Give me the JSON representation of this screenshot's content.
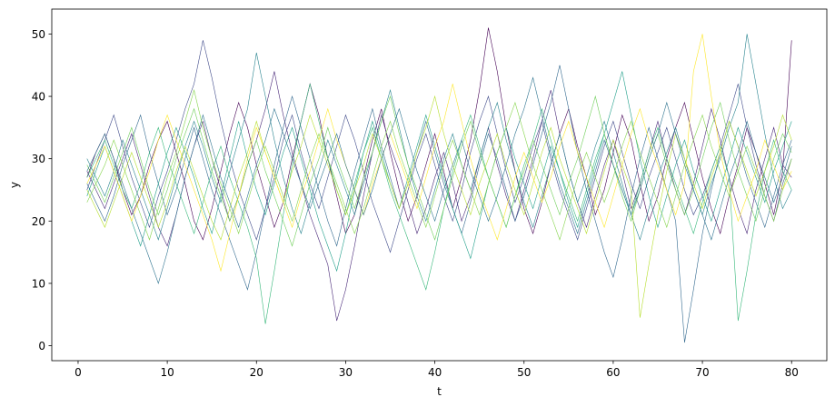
{
  "chart_data": {
    "type": "line",
    "x_label": "t",
    "y_label": "y",
    "x": [
      1,
      2,
      3,
      4,
      5,
      6,
      7,
      8,
      9,
      10,
      11,
      12,
      13,
      14,
      15,
      16,
      17,
      18,
      19,
      20,
      21,
      22,
      23,
      24,
      25,
      26,
      27,
      28,
      29,
      30,
      31,
      32,
      33,
      34,
      35,
      36,
      37,
      38,
      39,
      40,
      41,
      42,
      43,
      44,
      45,
      46,
      47,
      48,
      49,
      50,
      51,
      52,
      53,
      54,
      55,
      56,
      57,
      58,
      59,
      60,
      61,
      62,
      63,
      64,
      65,
      66,
      67,
      68,
      69,
      70,
      71,
      72,
      73,
      74,
      75,
      76,
      77,
      78,
      79,
      80
    ],
    "xlim": [
      -2.95,
      83.95
    ],
    "xticks": [
      0,
      10,
      20,
      30,
      40,
      50,
      60,
      70,
      80
    ],
    "ylim": [
      -2.4,
      54
    ],
    "yticks": [
      0,
      10,
      20,
      30,
      40,
      50
    ],
    "series": [
      {
        "color": "#440154",
        "values": [
          27,
          31,
          34,
          30,
          25,
          21,
          24,
          29,
          33,
          36,
          31,
          26,
          20,
          17,
          22,
          28,
          34,
          39,
          35,
          29,
          24,
          19,
          23,
          30,
          36,
          42,
          37,
          30,
          24,
          18,
          21,
          27,
          33,
          38,
          31,
          25,
          20,
          24,
          29,
          34,
          28,
          22,
          27,
          33,
          41,
          51,
          44,
          35,
          28,
          22,
          18,
          23,
          29,
          34,
          38,
          32,
          27,
          21,
          25,
          31,
          37,
          33,
          26,
          20,
          24,
          30,
          35,
          39,
          33,
          27,
          22,
          18,
          24,
          29,
          35,
          31,
          26,
          21,
          28,
          49
        ]
      },
      {
        "color": "#482878",
        "values": [
          28,
          25,
          22,
          26,
          30,
          34,
          29,
          24,
          19,
          16,
          21,
          27,
          32,
          36,
          30,
          25,
          20,
          24,
          29,
          33,
          38,
          44,
          37,
          31,
          26,
          21,
          17,
          13,
          4,
          9,
          16,
          24,
          31,
          37,
          32,
          28,
          23,
          18,
          22,
          27,
          31,
          26,
          20,
          24,
          30,
          35,
          29,
          24,
          20,
          25,
          30,
          36,
          41,
          34,
          28,
          23,
          19,
          24,
          29,
          33,
          28,
          22,
          26,
          31,
          36,
          30,
          25,
          21,
          26,
          32,
          38,
          33,
          27,
          22,
          18,
          25,
          30,
          35,
          29,
          27
        ]
      },
      {
        "color": "#3e4989",
        "values": [
          25,
          29,
          33,
          37,
          32,
          27,
          23,
          19,
          24,
          28,
          33,
          38,
          42,
          49,
          43,
          36,
          30,
          25,
          21,
          17,
          22,
          27,
          33,
          37,
          31,
          26,
          22,
          27,
          32,
          37,
          33,
          28,
          23,
          19,
          15,
          20,
          25,
          30,
          34,
          29,
          24,
          20,
          25,
          31,
          36,
          40,
          34,
          28,
          23,
          27,
          32,
          36,
          30,
          25,
          21,
          17,
          22,
          27,
          32,
          36,
          31,
          26,
          22,
          27,
          31,
          35,
          30,
          25,
          21,
          24,
          28,
          32,
          37,
          42,
          35,
          29,
          24,
          20,
          26,
          30
        ]
      },
      {
        "color": "#31688e",
        "values": [
          26,
          23,
          20,
          24,
          29,
          33,
          37,
          31,
          26,
          21,
          25,
          30,
          35,
          30,
          25,
          21,
          17,
          13,
          9,
          15,
          22,
          29,
          35,
          40,
          35,
          30,
          25,
          20,
          16,
          22,
          28,
          33,
          38,
          32,
          27,
          22,
          26,
          31,
          36,
          31,
          26,
          22,
          18,
          23,
          29,
          34,
          30,
          25,
          20,
          24,
          29,
          34,
          39,
          45,
          38,
          31,
          25,
          20,
          15,
          11,
          17,
          24,
          30,
          35,
          30,
          25,
          20,
          0.5,
          9,
          18,
          25,
          31,
          36,
          32,
          27,
          23,
          19,
          24,
          29,
          33
        ]
      },
      {
        "color": "#26828e",
        "values": [
          30,
          27,
          24,
          28,
          33,
          29,
          25,
          21,
          17,
          22,
          27,
          32,
          36,
          32,
          27,
          23,
          28,
          33,
          38,
          47,
          40,
          33,
          27,
          22,
          18,
          23,
          28,
          33,
          29,
          25,
          21,
          26,
          31,
          36,
          41,
          35,
          29,
          24,
          20,
          25,
          30,
          34,
          29,
          25,
          30,
          35,
          39,
          33,
          28,
          23,
          19,
          24,
          29,
          34,
          28,
          23,
          27,
          32,
          36,
          31,
          26,
          21,
          17,
          22,
          27,
          31,
          35,
          30,
          25,
          21,
          26,
          30,
          35,
          39,
          50,
          42,
          34,
          27,
          22,
          25
        ]
      },
      {
        "color": "#1f9e89",
        "values": [
          24,
          28,
          32,
          28,
          24,
          20,
          16,
          21,
          26,
          31,
          35,
          31,
          27,
          22,
          18,
          24,
          30,
          36,
          30,
          25,
          21,
          26,
          31,
          35,
          30,
          25,
          20,
          16,
          12,
          18,
          25,
          31,
          36,
          31,
          26,
          22,
          27,
          32,
          37,
          32,
          27,
          22,
          18,
          14,
          20,
          26,
          31,
          35,
          30,
          26,
          22,
          27,
          32,
          28,
          23,
          19,
          24,
          29,
          34,
          39,
          44,
          37,
          30,
          24,
          19,
          24,
          29,
          33,
          28,
          24,
          20,
          25,
          30,
          35,
          31,
          27,
          23,
          28,
          32,
          36
        ]
      },
      {
        "color": "#35b779",
        "values": [
          27,
          30,
          33,
          29,
          25,
          22,
          26,
          31,
          35,
          30,
          26,
          22,
          18,
          23,
          28,
          32,
          27,
          23,
          19,
          14,
          3.5,
          12,
          21,
          29,
          36,
          42,
          36,
          30,
          25,
          21,
          26,
          31,
          35,
          30,
          25,
          21,
          17,
          13,
          9,
          15,
          22,
          28,
          33,
          37,
          32,
          27,
          23,
          19,
          24,
          29,
          33,
          38,
          33,
          28,
          24,
          20,
          25,
          30,
          34,
          29,
          25,
          21,
          26,
          31,
          35,
          30,
          26,
          22,
          18,
          23,
          28,
          32,
          27,
          4,
          12,
          21,
          28,
          33,
          28,
          25
        ]
      },
      {
        "color": "#6ece58",
        "values": [
          29,
          26,
          23,
          27,
          31,
          35,
          30,
          25,
          21,
          25,
          30,
          34,
          38,
          33,
          28,
          24,
          20,
          24,
          29,
          33,
          28,
          24,
          20,
          16,
          21,
          26,
          30,
          35,
          30,
          26,
          22,
          27,
          31,
          36,
          40,
          34,
          29,
          25,
          21,
          17,
          22,
          27,
          32,
          36,
          31,
          27,
          23,
          19,
          24,
          28,
          33,
          29,
          25,
          21,
          26,
          30,
          35,
          40,
          34,
          29,
          24,
          20,
          25,
          30,
          34,
          29,
          25,
          21,
          25,
          30,
          35,
          39,
          33,
          28,
          24,
          20,
          25,
          30,
          34,
          31
        ]
      },
      {
        "color": "#b5de2b",
        "values": [
          25,
          22,
          19,
          23,
          27,
          31,
          27,
          23,
          19,
          23,
          28,
          32,
          28,
          24,
          20,
          17,
          22,
          27,
          31,
          36,
          31,
          27,
          23,
          28,
          32,
          37,
          33,
          29,
          25,
          21,
          25,
          29,
          34,
          30,
          26,
          22,
          26,
          31,
          35,
          40,
          34,
          29,
          25,
          21,
          26,
          30,
          34,
          29,
          25,
          21,
          26,
          31,
          35,
          30,
          26,
          22,
          18,
          23,
          28,
          33,
          29,
          25,
          4.5,
          13,
          21,
          28,
          34,
          30,
          26,
          22,
          27,
          31,
          36,
          32,
          28,
          24,
          28,
          32,
          37,
          33
        ]
      },
      {
        "color": "#fde725",
        "values": [
          26,
          29,
          32,
          28,
          24,
          20,
          24,
          28,
          33,
          37,
          33,
          29,
          25,
          21,
          17,
          12,
          18,
          24,
          30,
          35,
          31,
          27,
          23,
          19,
          24,
          28,
          33,
          38,
          33,
          29,
          25,
          21,
          26,
          30,
          34,
          30,
          26,
          22,
          27,
          32,
          36,
          42,
          36,
          30,
          25,
          21,
          17,
          22,
          27,
          31,
          27,
          23,
          27,
          32,
          36,
          31,
          27,
          23,
          19,
          24,
          29,
          34,
          38,
          33,
          29,
          25,
          21,
          26,
          44,
          50,
          40,
          31,
          25,
          20,
          24,
          28,
          33,
          29,
          25,
          28
        ]
      },
      {
        "color": "#2c728e",
        "values": [
          28,
          31,
          34,
          30,
          26,
          22,
          18,
          14,
          10,
          15,
          21,
          27,
          32,
          37,
          32,
          27,
          23,
          19,
          24,
          29,
          33,
          38,
          34,
          30,
          26,
          22,
          26,
          30,
          34,
          29,
          25,
          21,
          25,
          30,
          34,
          38,
          33,
          28,
          24,
          20,
          25,
          29,
          33,
          28,
          24,
          20,
          24,
          29,
          34,
          38,
          43,
          37,
          31,
          26,
          22,
          18,
          23,
          28,
          33,
          29,
          25,
          21,
          25,
          30,
          34,
          39,
          34,
          29,
          25,
          21,
          17,
          22,
          27,
          31,
          36,
          31,
          27,
          23,
          27,
          32
        ]
      },
      {
        "color": "#84d44b",
        "values": [
          23,
          26,
          29,
          33,
          29,
          25,
          21,
          17,
          22,
          27,
          31,
          36,
          41,
          35,
          30,
          26,
          22,
          18,
          23,
          28,
          32,
          28,
          24,
          20,
          25,
          30,
          34,
          30,
          26,
          22,
          18,
          22,
          27,
          32,
          36,
          31,
          27,
          23,
          19,
          24,
          29,
          33,
          29,
          25,
          21,
          26,
          31,
          35,
          39,
          34,
          29,
          25,
          21,
          17,
          22,
          27,
          31,
          27,
          23,
          27,
          32,
          36,
          31,
          27,
          23,
          19,
          24,
          29,
          33,
          37,
          32,
          28,
          24,
          28,
          32,
          28,
          24,
          20,
          25,
          30
        ]
      }
    ]
  }
}
